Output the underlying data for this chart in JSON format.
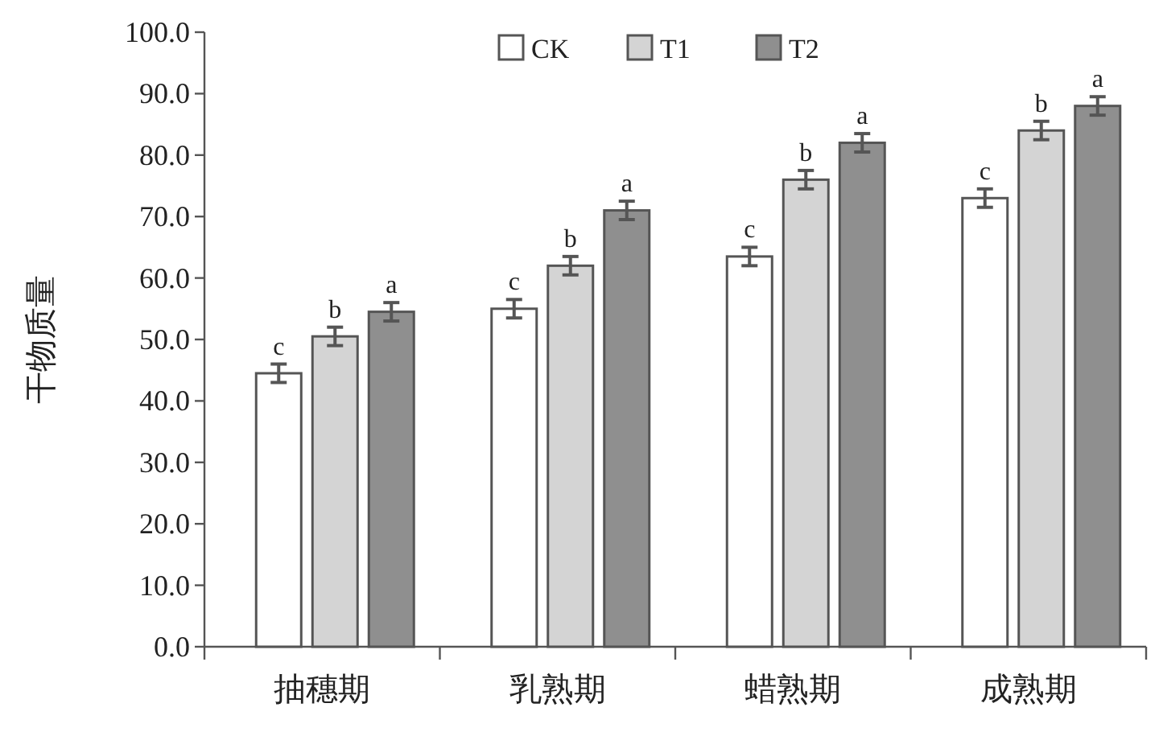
{
  "chart_data": {
    "type": "bar",
    "ylabel": "干物质量",
    "categories": [
      "抽穗期",
      "乳熟期",
      "蜡熟期",
      "成熟期"
    ],
    "series": [
      {
        "name": "CK",
        "color": "#ffffff",
        "values": [
          44.5,
          55.0,
          63.5,
          73.0
        ],
        "errors": [
          1.5,
          1.5,
          1.5,
          1.5
        ],
        "value_labels": [
          "c",
          "c",
          "c",
          "c"
        ]
      },
      {
        "name": "T1",
        "color": "#d4d4d4",
        "values": [
          50.5,
          62.0,
          76.0,
          84.0
        ],
        "errors": [
          1.5,
          1.5,
          1.5,
          1.5
        ],
        "value_labels": [
          "b",
          "b",
          "b",
          "b"
        ]
      },
      {
        "name": "T2",
        "color": "#8f8f8f",
        "values": [
          54.5,
          71.0,
          82.0,
          88.0
        ],
        "errors": [
          1.5,
          1.5,
          1.5,
          1.5
        ],
        "value_labels": [
          "a",
          "a",
          "a",
          "a"
        ]
      }
    ],
    "ylim": [
      0,
      100
    ],
    "yticks": [
      {
        "value": 0,
        "label": "0.0"
      },
      {
        "value": 10,
        "label": "10.0"
      },
      {
        "value": 20,
        "label": "20.0"
      },
      {
        "value": 30,
        "label": "30.0"
      },
      {
        "value": 40,
        "label": "40.0"
      },
      {
        "value": 50,
        "label": "50.0"
      },
      {
        "value": 60,
        "label": "60.0"
      },
      {
        "value": 70,
        "label": "70.0"
      },
      {
        "value": 80,
        "label": "80.0"
      },
      {
        "value": 90,
        "label": "90.0"
      },
      {
        "value": 100,
        "label": "100.0"
      }
    ],
    "grid": false,
    "legend": "top"
  }
}
